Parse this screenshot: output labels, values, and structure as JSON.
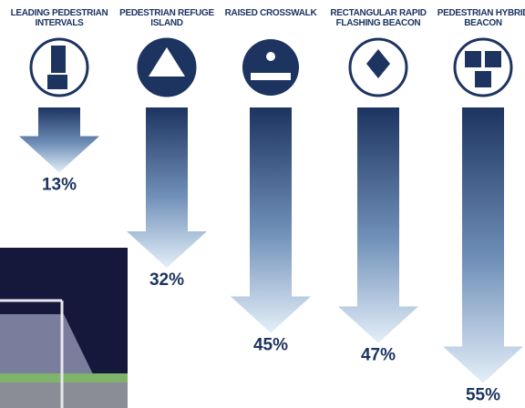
{
  "chart_data": {
    "type": "arrow",
    "categories": [
      "LEADING PEDESTRIAN INTERVALS",
      "PEDESTRIAN REFUGE ISLAND",
      "RAISED CROSSWALK",
      "RECTANGULAR RAPID FLASHING BEACON",
      "PEDESTRIAN HYBRID BEACON"
    ],
    "values": [
      13,
      32,
      45,
      47,
      55
    ],
    "value_labels": [
      "13%",
      "32%",
      "45%",
      "47%",
      "55%"
    ],
    "color": "#1d3461"
  }
}
